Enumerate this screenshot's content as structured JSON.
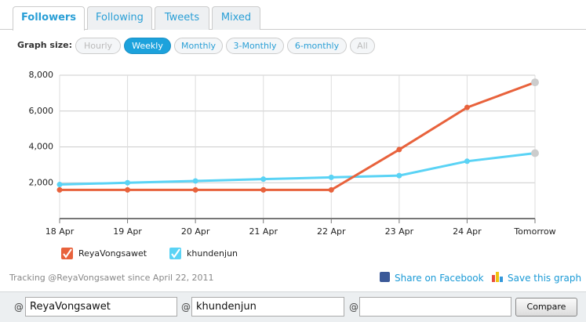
{
  "tabs": [
    "Followers",
    "Following",
    "Tweets",
    "Mixed"
  ],
  "graph_size": {
    "label": "Graph size:",
    "options": [
      "Hourly",
      "Weekly",
      "Monthly",
      "3-Monthly",
      "6-monthly",
      "All"
    ]
  },
  "chart_data": {
    "type": "line",
    "categories": [
      "18 Apr",
      "19 Apr",
      "20 Apr",
      "21 Apr",
      "22 Apr",
      "23 Apr",
      "24 Apr",
      "Tomorrow"
    ],
    "series": [
      {
        "name": "ReyaVongsawet",
        "color": "#e8623c",
        "values": [
          1600,
          1600,
          1600,
          1600,
          1600,
          3850,
          6200,
          7600
        ]
      },
      {
        "name": "khundenjun",
        "color": "#5ad3f5",
        "values": [
          1900,
          2000,
          2100,
          2200,
          2300,
          2400,
          3200,
          3650
        ]
      }
    ],
    "ylim": [
      0,
      8000
    ],
    "yticks": [
      {
        "value": 2000,
        "label": "2,000"
      },
      {
        "value": 4000,
        "label": "4,000"
      },
      {
        "value": 6000,
        "label": "6,000"
      },
      {
        "value": 8000,
        "label": "8,000"
      }
    ],
    "grid": true
  },
  "footer": {
    "tracking": "Tracking @ReyaVongsawet since April 22, 2011",
    "share": "Share on Facebook",
    "save": "Save this graph"
  },
  "compare": {
    "at": "@",
    "users": [
      "ReyaVongsawet",
      "khundenjun"
    ],
    "button": "Compare"
  }
}
